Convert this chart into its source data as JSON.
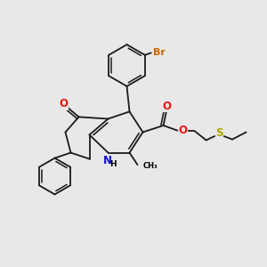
{
  "background_color": "#e8e8e8",
  "figure_size": [
    3.0,
    3.0
  ],
  "dpi": 100,
  "colors": {
    "Br": "#cc6600",
    "O": "#ee1111",
    "N": "#1111cc",
    "S": "#aaaa00",
    "bond": "#1a1a1a"
  },
  "bond_width": 1.3,
  "font_size_atom": 8.5,
  "font_size_label": 7.5
}
